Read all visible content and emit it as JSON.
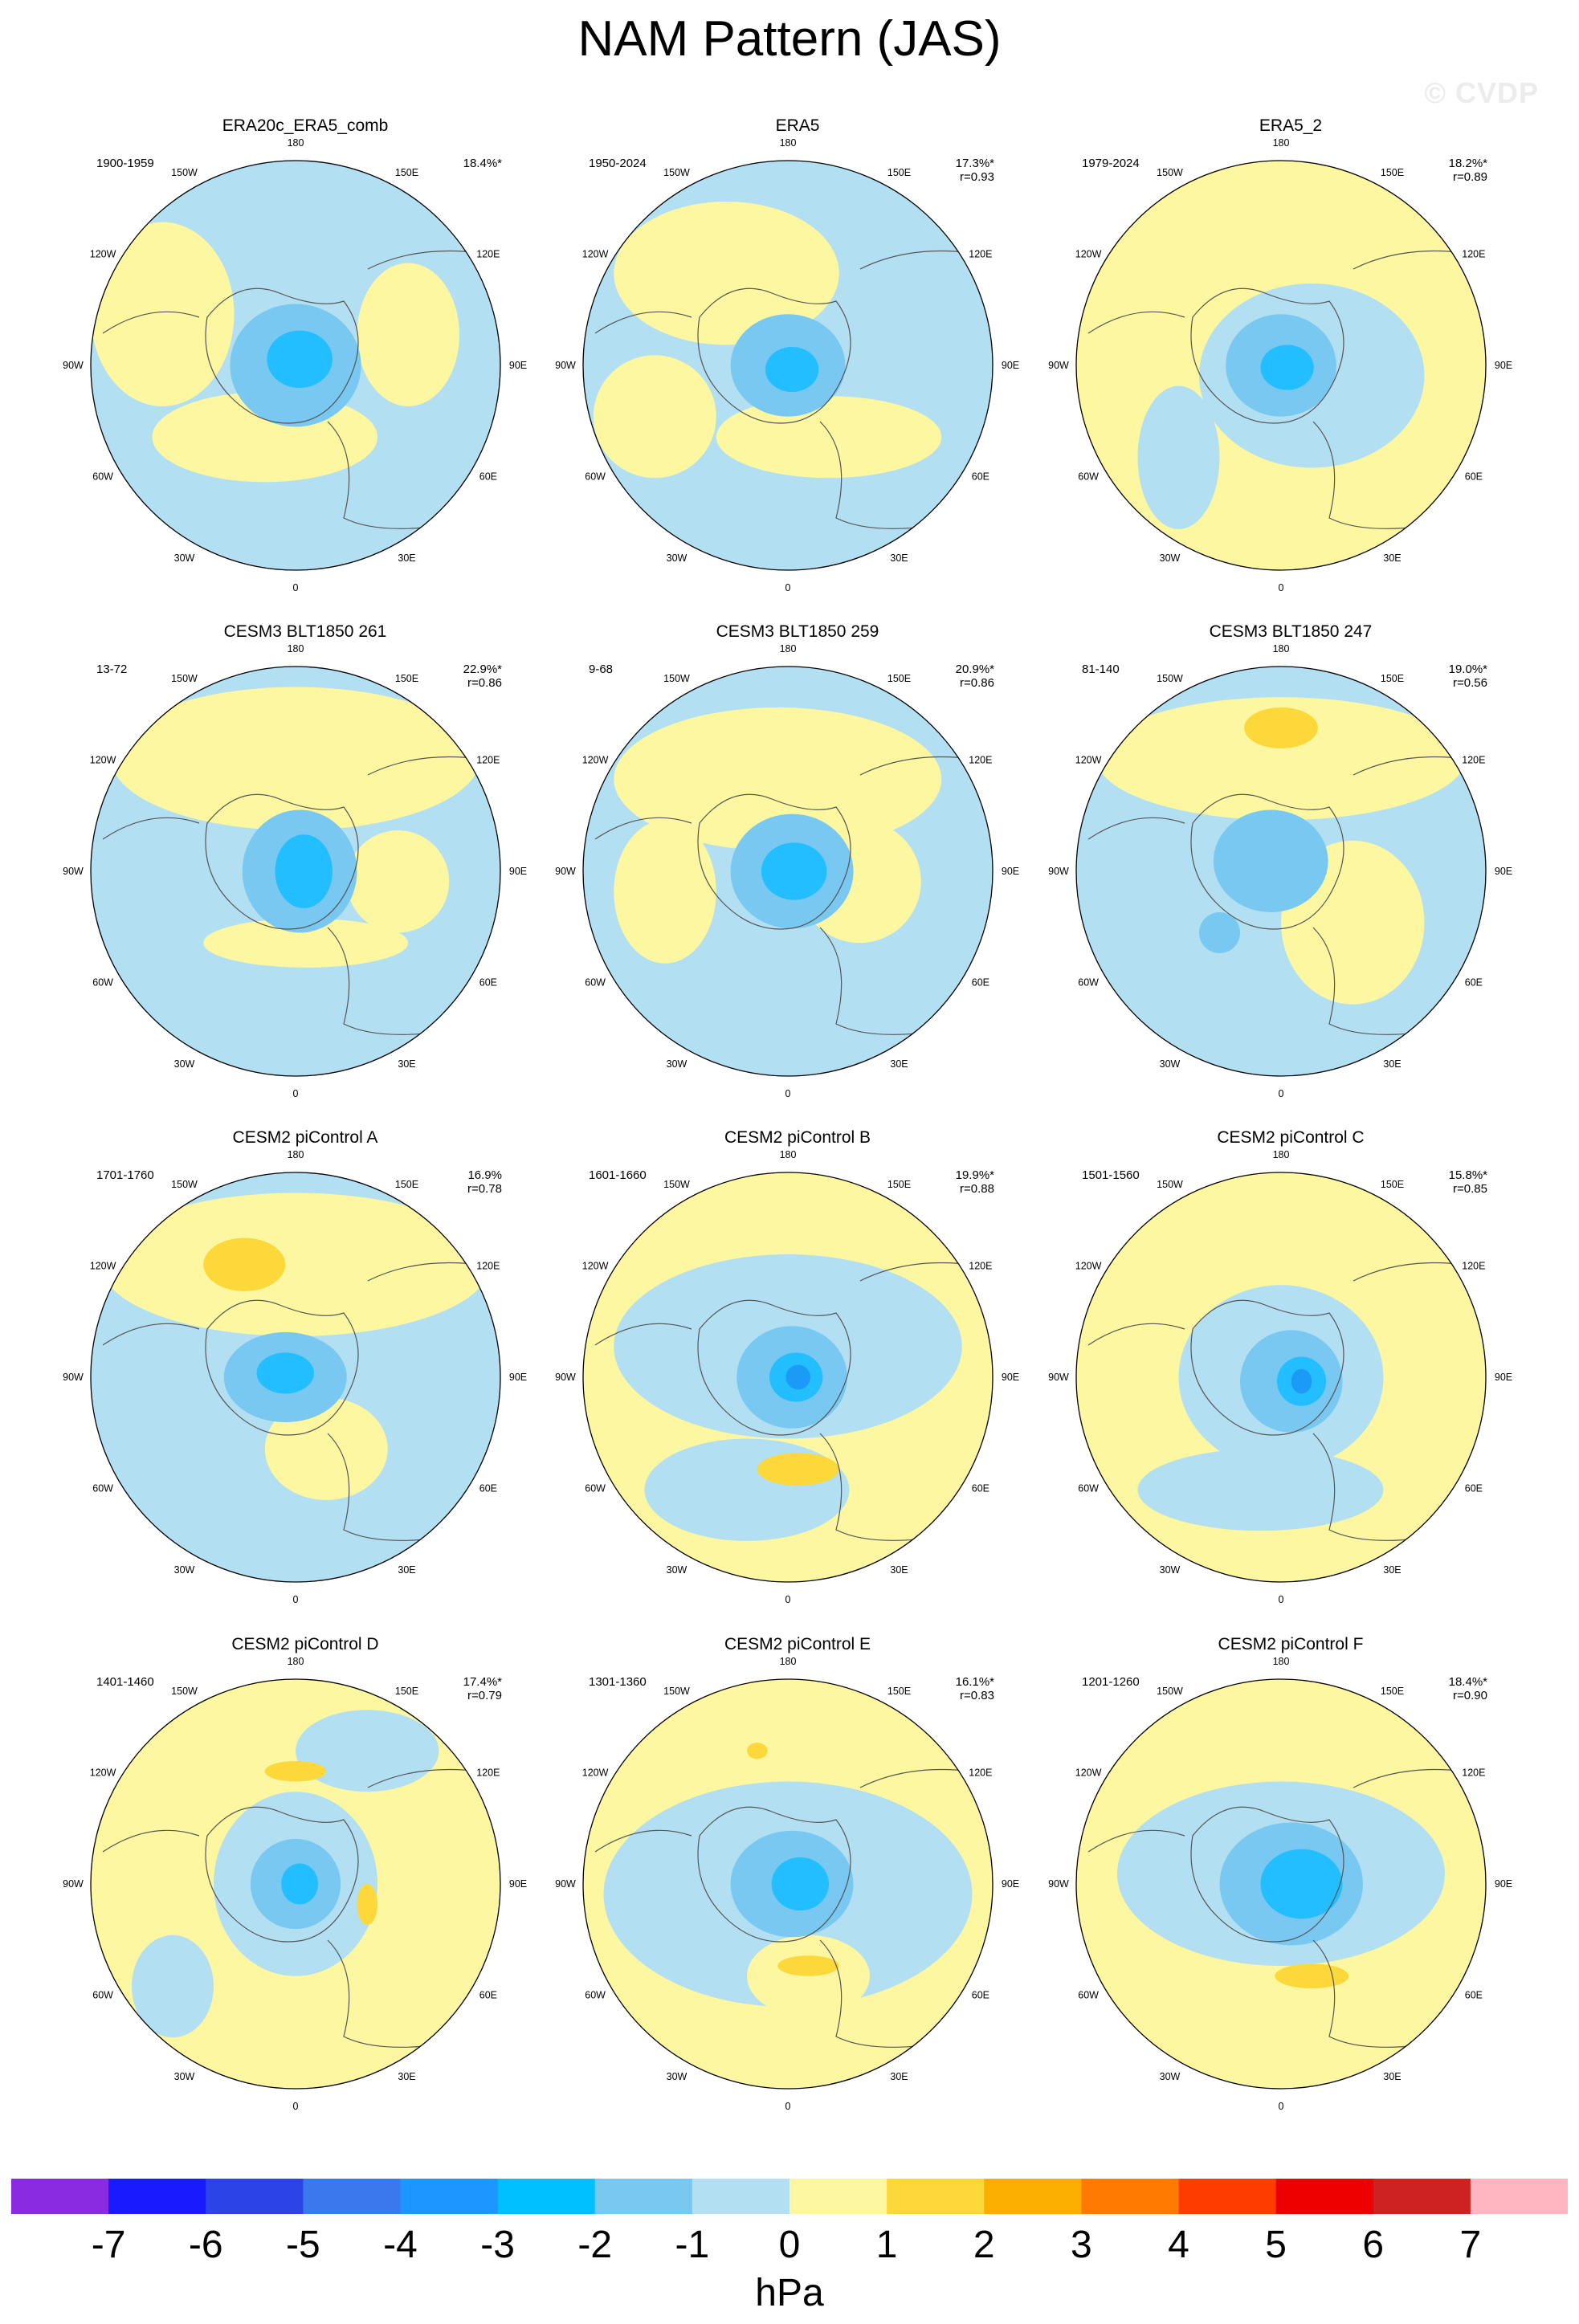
{
  "title": "NAM Pattern (JAS)",
  "watermark": "© CVDP",
  "unit": "hPa",
  "colors": {
    "ocean_neg1": "#b3dff2",
    "pos1": "#fdf7a1",
    "neg2": "#78c8f1",
    "neg3": "#22beff",
    "neg4": "#1b9bf5",
    "pos2": "#fcd83a",
    "coast": "#555555"
  },
  "lon_labels": [
    "180",
    "150E",
    "120E",
    "90E",
    "60E",
    "30E",
    "0",
    "30W",
    "60W",
    "90W",
    "120W",
    "150W"
  ],
  "colorbar": {
    "colors": [
      "#8a2be2",
      "#1a1aff",
      "#2c44e6",
      "#3a78ee",
      "#1e96ff",
      "#00bfff",
      "#78c8f1",
      "#b3dff2",
      "#fdf7a1",
      "#fcd83a",
      "#fcae00",
      "#ff7a00",
      "#ff3c00",
      "#ee0000",
      "#cc2222",
      "#ffb6c1"
    ],
    "ticks": [
      "-7",
      "-6",
      "-5",
      "-4",
      "-3",
      "-2",
      "-1",
      "0",
      "1",
      "2",
      "3",
      "4",
      "5",
      "6",
      "7"
    ]
  },
  "panels": [
    {
      "title": "ERA20c_ERA5_comb",
      "years": "1900-1959",
      "pct": "18.4%*",
      "r": "",
      "bg": "neg1",
      "blobs": [
        [
          "pos1",
          -0.15,
          0.35,
          0.55,
          0.22
        ],
        [
          "pos1",
          -0.65,
          -0.25,
          0.35,
          0.45
        ],
        [
          "pos1",
          0.55,
          -0.15,
          0.25,
          0.35
        ],
        [
          "neg2",
          0.0,
          0.0,
          0.32,
          0.3
        ],
        [
          "neg3",
          0.02,
          -0.03,
          0.16,
          0.14
        ]
      ]
    },
    {
      "title": "ERA5",
      "years": "1950-2024",
      "pct": "17.3%*",
      "r": "r=0.93",
      "bg": "neg1",
      "blobs": [
        [
          "pos1",
          -0.3,
          -0.45,
          0.55,
          0.35
        ],
        [
          "pos1",
          0.2,
          0.35,
          0.55,
          0.2
        ],
        [
          "pos1",
          -0.65,
          0.25,
          0.3,
          0.3
        ],
        [
          "neg2",
          0.0,
          0.0,
          0.28,
          0.25
        ],
        [
          "neg3",
          0.02,
          0.02,
          0.13,
          0.11
        ]
      ]
    },
    {
      "title": "ERA5_2",
      "years": "1979-2024",
      "pct": "18.2%*",
      "r": "r=0.89",
      "bg": "pos1",
      "blobs": [
        [
          "neg1",
          0.15,
          0.05,
          0.55,
          0.45
        ],
        [
          "neg1",
          -0.5,
          0.45,
          0.2,
          0.35
        ],
        [
          "neg2",
          0.0,
          0.0,
          0.27,
          0.25
        ],
        [
          "neg3",
          0.03,
          0.01,
          0.13,
          0.11
        ]
      ]
    },
    {
      "title": "CESM3 BLT1850 261",
      "years": "13-72",
      "pct": "22.9%*",
      "r": "r=0.86",
      "bg": "neg1",
      "blobs": [
        [
          "pos1",
          0.0,
          -0.55,
          0.9,
          0.35
        ],
        [
          "pos1",
          0.05,
          0.35,
          0.5,
          0.12
        ],
        [
          "pos1",
          0.5,
          0.05,
          0.25,
          0.25
        ],
        [
          "neg2",
          0.02,
          0.0,
          0.28,
          0.3
        ],
        [
          "neg3",
          0.04,
          0.0,
          0.14,
          0.18
        ]
      ]
    },
    {
      "title": "CESM3 BLT1850 259",
      "years": "9-68",
      "pct": "20.9%*",
      "r": "r=0.86",
      "bg": "neg1",
      "blobs": [
        [
          "pos1",
          -0.05,
          -0.45,
          0.8,
          0.35
        ],
        [
          "pos1",
          0.35,
          0.05,
          0.3,
          0.3
        ],
        [
          "pos1",
          -0.6,
          0.1,
          0.25,
          0.35
        ],
        [
          "neg2",
          0.02,
          0.0,
          0.3,
          0.28
        ],
        [
          "neg3",
          0.03,
          0.0,
          0.16,
          0.14
        ]
      ]
    },
    {
      "title": "CESM3 BLT1850 247",
      "years": "81-140",
      "pct": "19.0%*",
      "r": "r=0.56",
      "bg": "neg1",
      "blobs": [
        [
          "pos1",
          0.0,
          -0.55,
          0.9,
          0.3
        ],
        [
          "pos1",
          0.35,
          0.25,
          0.35,
          0.4
        ],
        [
          "pos2",
          0.0,
          -0.7,
          0.18,
          0.1
        ],
        [
          "neg2",
          -0.05,
          -0.05,
          0.28,
          0.25
        ],
        [
          "neg2",
          -0.3,
          0.3,
          0.1,
          0.1
        ]
      ]
    },
    {
      "title": "CESM2 piControl A",
      "years": "1701-1760",
      "pct": "16.9%",
      "r": "r=0.78",
      "bg": "neg1",
      "blobs": [
        [
          "pos1",
          0.0,
          -0.55,
          0.95,
          0.35
        ],
        [
          "pos1",
          0.15,
          0.35,
          0.3,
          0.25
        ],
        [
          "pos2",
          -0.25,
          -0.55,
          0.2,
          0.13
        ],
        [
          "neg2",
          -0.05,
          0.0,
          0.3,
          0.22
        ],
        [
          "neg3",
          -0.05,
          -0.02,
          0.14,
          0.1
        ]
      ]
    },
    {
      "title": "CESM2 piControl B",
      "years": "1601-1660",
      "pct": "19.9%*",
      "r": "r=0.88",
      "bg": "pos1",
      "blobs": [
        [
          "neg1",
          0.0,
          -0.15,
          0.85,
          0.45
        ],
        [
          "neg1",
          -0.2,
          0.55,
          0.5,
          0.25
        ],
        [
          "pos2",
          0.05,
          0.45,
          0.2,
          0.08
        ],
        [
          "neg2",
          0.02,
          0.0,
          0.27,
          0.25
        ],
        [
          "neg3",
          0.04,
          0.0,
          0.13,
          0.12
        ],
        [
          "neg4",
          0.05,
          0.0,
          0.06,
          0.06
        ]
      ]
    },
    {
      "title": "CESM2 piControl C",
      "years": "1501-1560",
      "pct": "15.8%*",
      "r": "r=0.85",
      "bg": "pos1",
      "blobs": [
        [
          "neg1",
          0.0,
          0.0,
          0.5,
          0.45
        ],
        [
          "neg1",
          -0.1,
          0.55,
          0.6,
          0.2
        ],
        [
          "neg2",
          0.05,
          0.02,
          0.25,
          0.25
        ],
        [
          "neg3",
          0.1,
          0.02,
          0.12,
          0.12
        ],
        [
          "neg4",
          0.1,
          0.02,
          0.05,
          0.06
        ]
      ]
    },
    {
      "title": "CESM2 piControl D",
      "years": "1401-1460",
      "pct": "17.4%*",
      "r": "r=0.79",
      "bg": "pos1",
      "blobs": [
        [
          "neg1",
          0.0,
          0.0,
          0.4,
          0.45
        ],
        [
          "neg1",
          0.35,
          -0.65,
          0.35,
          0.2
        ],
        [
          "neg1",
          -0.6,
          0.5,
          0.2,
          0.25
        ],
        [
          "pos2",
          0.0,
          -0.55,
          0.15,
          0.05
        ],
        [
          "pos2",
          0.35,
          0.1,
          0.05,
          0.1
        ],
        [
          "neg2",
          0.0,
          0.0,
          0.22,
          0.22
        ],
        [
          "neg3",
          0.02,
          0.0,
          0.09,
          0.1
        ]
      ]
    },
    {
      "title": "CESM2 piControl E",
      "years": "1301-1360",
      "pct": "16.1%*",
      "r": "r=0.83",
      "bg": "pos1",
      "blobs": [
        [
          "neg1",
          0.0,
          0.05,
          0.9,
          0.55
        ],
        [
          "pos1",
          0.1,
          0.45,
          0.3,
          0.2
        ],
        [
          "pos2",
          0.1,
          0.4,
          0.15,
          0.05
        ],
        [
          "pos2",
          -0.15,
          -0.65,
          0.05,
          0.04
        ],
        [
          "neg2",
          0.02,
          0.0,
          0.3,
          0.26
        ],
        [
          "neg3",
          0.06,
          0.0,
          0.14,
          0.13
        ]
      ]
    },
    {
      "title": "CESM2 piControl F",
      "years": "1201-1260",
      "pct": "18.4%*",
      "r": "r=0.90",
      "bg": "pos1",
      "blobs": [
        [
          "neg1",
          0.0,
          -0.05,
          0.8,
          0.45
        ],
        [
          "neg2",
          0.05,
          0.0,
          0.35,
          0.3
        ],
        [
          "neg3",
          0.1,
          0.0,
          0.2,
          0.17
        ],
        [
          "pos2",
          0.15,
          0.45,
          0.18,
          0.06
        ]
      ]
    }
  ]
}
